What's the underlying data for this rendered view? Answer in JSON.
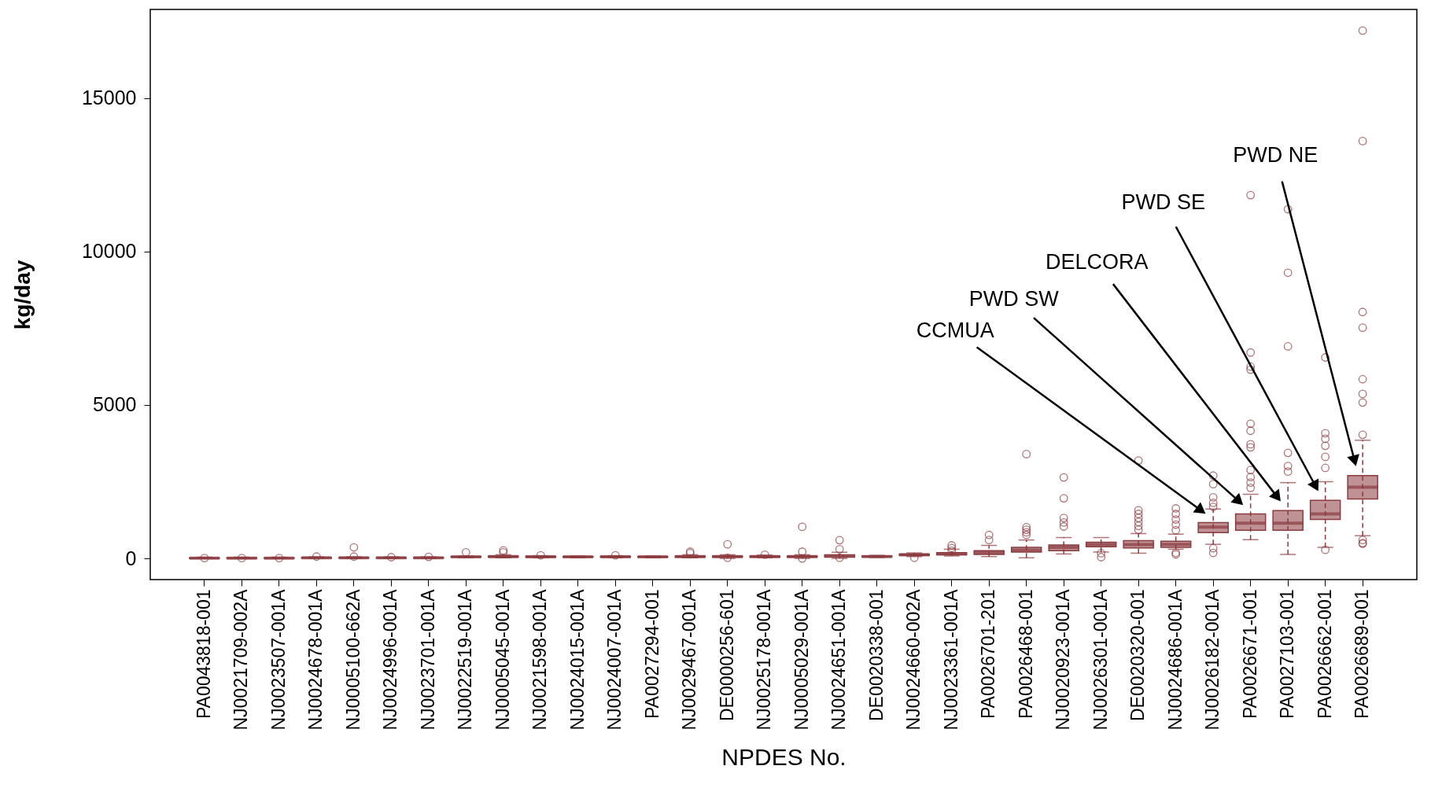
{
  "chart_data": {
    "type": "box",
    "xlabel": "NPDES No.",
    "ylabel": "kg/day",
    "color": "#8b3a3e",
    "ylim": [
      -690,
      17890
    ],
    "yticks": [
      0,
      5000,
      10000,
      15000
    ],
    "grid": false,
    "marker": "circle",
    "categories": [
      "PA0043818-001",
      "NJ0021709-002A",
      "NJ0023507-001A",
      "NJ0024678-001A",
      "NJ0005100-662A",
      "NJ0024996-001A",
      "NJ0023701-001A",
      "NJ0022519-001A",
      "NJ0005045-001A",
      "NJ0021598-001A",
      "NJ0024015-001A",
      "NJ0024007-001A",
      "PA0027294-001",
      "NJ0029467-001A",
      "DE0000256-601",
      "NJ0025178-001A",
      "NJ0005029-001A",
      "NJ0024651-001A",
      "DE0020338-001",
      "NJ0024660-002A",
      "NJ0023361-001A",
      "PA0026701-201",
      "PA0026468-001",
      "NJ0020923-001A",
      "NJ0026301-001A",
      "DE0020320-001",
      "NJ0024686-001A",
      "NJ0026182-001A",
      "PA0026671-001",
      "PA0027103-001",
      "PA0026662-001",
      "PA0026689-001"
    ],
    "boxes": [
      {
        "low": 0,
        "q1": 5,
        "median": 10,
        "q3": 20,
        "high": 40,
        "outliers": [
          10
        ]
      },
      {
        "low": 0,
        "q1": 5,
        "median": 10,
        "q3": 20,
        "high": 40,
        "outliers": [
          10
        ]
      },
      {
        "low": 0,
        "q1": 5,
        "median": 10,
        "q3": 20,
        "high": 40,
        "outliers": [
          10
        ]
      },
      {
        "low": 0,
        "q1": 10,
        "median": 20,
        "q3": 30,
        "high": 50,
        "outliers": [
          60
        ]
      },
      {
        "low": 0,
        "q1": 10,
        "median": 20,
        "q3": 30,
        "high": 50,
        "outliers": [
          360,
          60
        ]
      },
      {
        "low": 0,
        "q1": 10,
        "median": 20,
        "q3": 30,
        "high": 50,
        "outliers": [
          40
        ]
      },
      {
        "low": 0,
        "q1": 10,
        "median": 20,
        "q3": 30,
        "high": 50,
        "outliers": [
          50
        ]
      },
      {
        "low": 20,
        "q1": 40,
        "median": 50,
        "q3": 60,
        "high": 80,
        "outliers": [
          200
        ]
      },
      {
        "low": 20,
        "q1": 40,
        "median": 60,
        "q3": 80,
        "high": 120,
        "outliers": [
          260,
          200
        ]
      },
      {
        "low": 20,
        "q1": 40,
        "median": 50,
        "q3": 70,
        "high": 90,
        "outliers": [
          100
        ]
      },
      {
        "low": 20,
        "q1": 40,
        "median": 50,
        "q3": 60,
        "high": 80
      },
      {
        "low": 20,
        "q1": 40,
        "median": 50,
        "q3": 70,
        "high": 90,
        "outliers": [
          100
        ]
      },
      {
        "low": 20,
        "q1": 40,
        "median": 50,
        "q3": 60,
        "high": 80
      },
      {
        "low": 20,
        "q1": 40,
        "median": 60,
        "q3": 80,
        "high": 120,
        "outliers": [
          220,
          170
        ]
      },
      {
        "low": 0,
        "q1": 40,
        "median": 60,
        "q3": 80,
        "high": 120,
        "outliers": [
          460,
          20
        ]
      },
      {
        "low": 20,
        "q1": 40,
        "median": 60,
        "q3": 80,
        "high": 110,
        "outliers": [
          120
        ]
      },
      {
        "low": 0,
        "q1": 40,
        "median": 60,
        "q3": 80,
        "high": 120,
        "outliers": [
          1030,
          220,
          0
        ]
      },
      {
        "low": 0,
        "q1": 40,
        "median": 80,
        "q3": 120,
        "high": 200,
        "outliers": [
          595,
          300,
          20
        ]
      },
      {
        "low": 30,
        "q1": 50,
        "median": 60,
        "q3": 80,
        "high": 100
      },
      {
        "low": 60,
        "q1": 100,
        "median": 120,
        "q3": 140,
        "high": 180,
        "outliers": [
          20
        ]
      },
      {
        "low": 80,
        "q1": 120,
        "median": 150,
        "q3": 190,
        "high": 300,
        "outliers": [
          425,
          340,
          250
        ]
      },
      {
        "low": 60,
        "q1": 130,
        "median": 190,
        "q3": 255,
        "high": 425,
        "outliers": [
          765,
          600
        ]
      },
      {
        "low": 20,
        "q1": 210,
        "median": 270,
        "q3": 360,
        "high": 600,
        "outliers": [
          3400,
          1020,
          935,
          850,
          765
        ]
      },
      {
        "low": 145,
        "q1": 255,
        "median": 360,
        "q3": 440,
        "high": 680,
        "outliers": [
          2640,
          1960,
          1320,
          1170,
          1040
        ]
      },
      {
        "low": 210,
        "q1": 380,
        "median": 450,
        "q3": 530,
        "high": 680,
        "outliers": [
          170,
          40
        ]
      },
      {
        "low": 170,
        "q1": 340,
        "median": 450,
        "q3": 580,
        "high": 810,
        "outliers": [
          3190,
          1570,
          1450,
          1320,
          1190,
          1060,
          935
        ]
      },
      {
        "low": 300,
        "q1": 360,
        "median": 460,
        "q3": 560,
        "high": 790,
        "outliers": [
          1630,
          1450,
          1270,
          1100,
          920,
          180,
          130
        ]
      },
      {
        "low": 460,
        "q1": 840,
        "median": 1020,
        "q3": 1170,
        "high": 1610,
        "outliers": [
          2700,
          2420,
          1990,
          1810,
          1680,
          330,
          180
        ]
      },
      {
        "low": 610,
        "q1": 920,
        "median": 1150,
        "q3": 1450,
        "high": 2090,
        "outliers": [
          11840,
          6710,
          6250,
          6150,
          4390,
          4160,
          3720,
          3620,
          2880,
          2650,
          2470,
          2300
        ]
      },
      {
        "low": 130,
        "q1": 920,
        "median": 1150,
        "q3": 1560,
        "high": 2470,
        "outliers": [
          11380,
          9310,
          6910,
          3440,
          3010,
          2830
        ]
      },
      {
        "low": 360,
        "q1": 1270,
        "median": 1450,
        "q3": 1890,
        "high": 2500,
        "outliers": [
          6550,
          4080,
          3900,
          3670,
          3310,
          2950,
          280
        ]
      },
      {
        "low": 740,
        "q1": 1940,
        "median": 2320,
        "q3": 2700,
        "high": 3850,
        "outliers": [
          17200,
          13600,
          8030,
          7520,
          5840,
          5360,
          5080,
          4030,
          600,
          500,
          480
        ]
      }
    ],
    "annotations": [
      "CCMUA",
      "PWD SW",
      "DELCORA",
      "PWD SE",
      "PWD NE"
    ]
  }
}
